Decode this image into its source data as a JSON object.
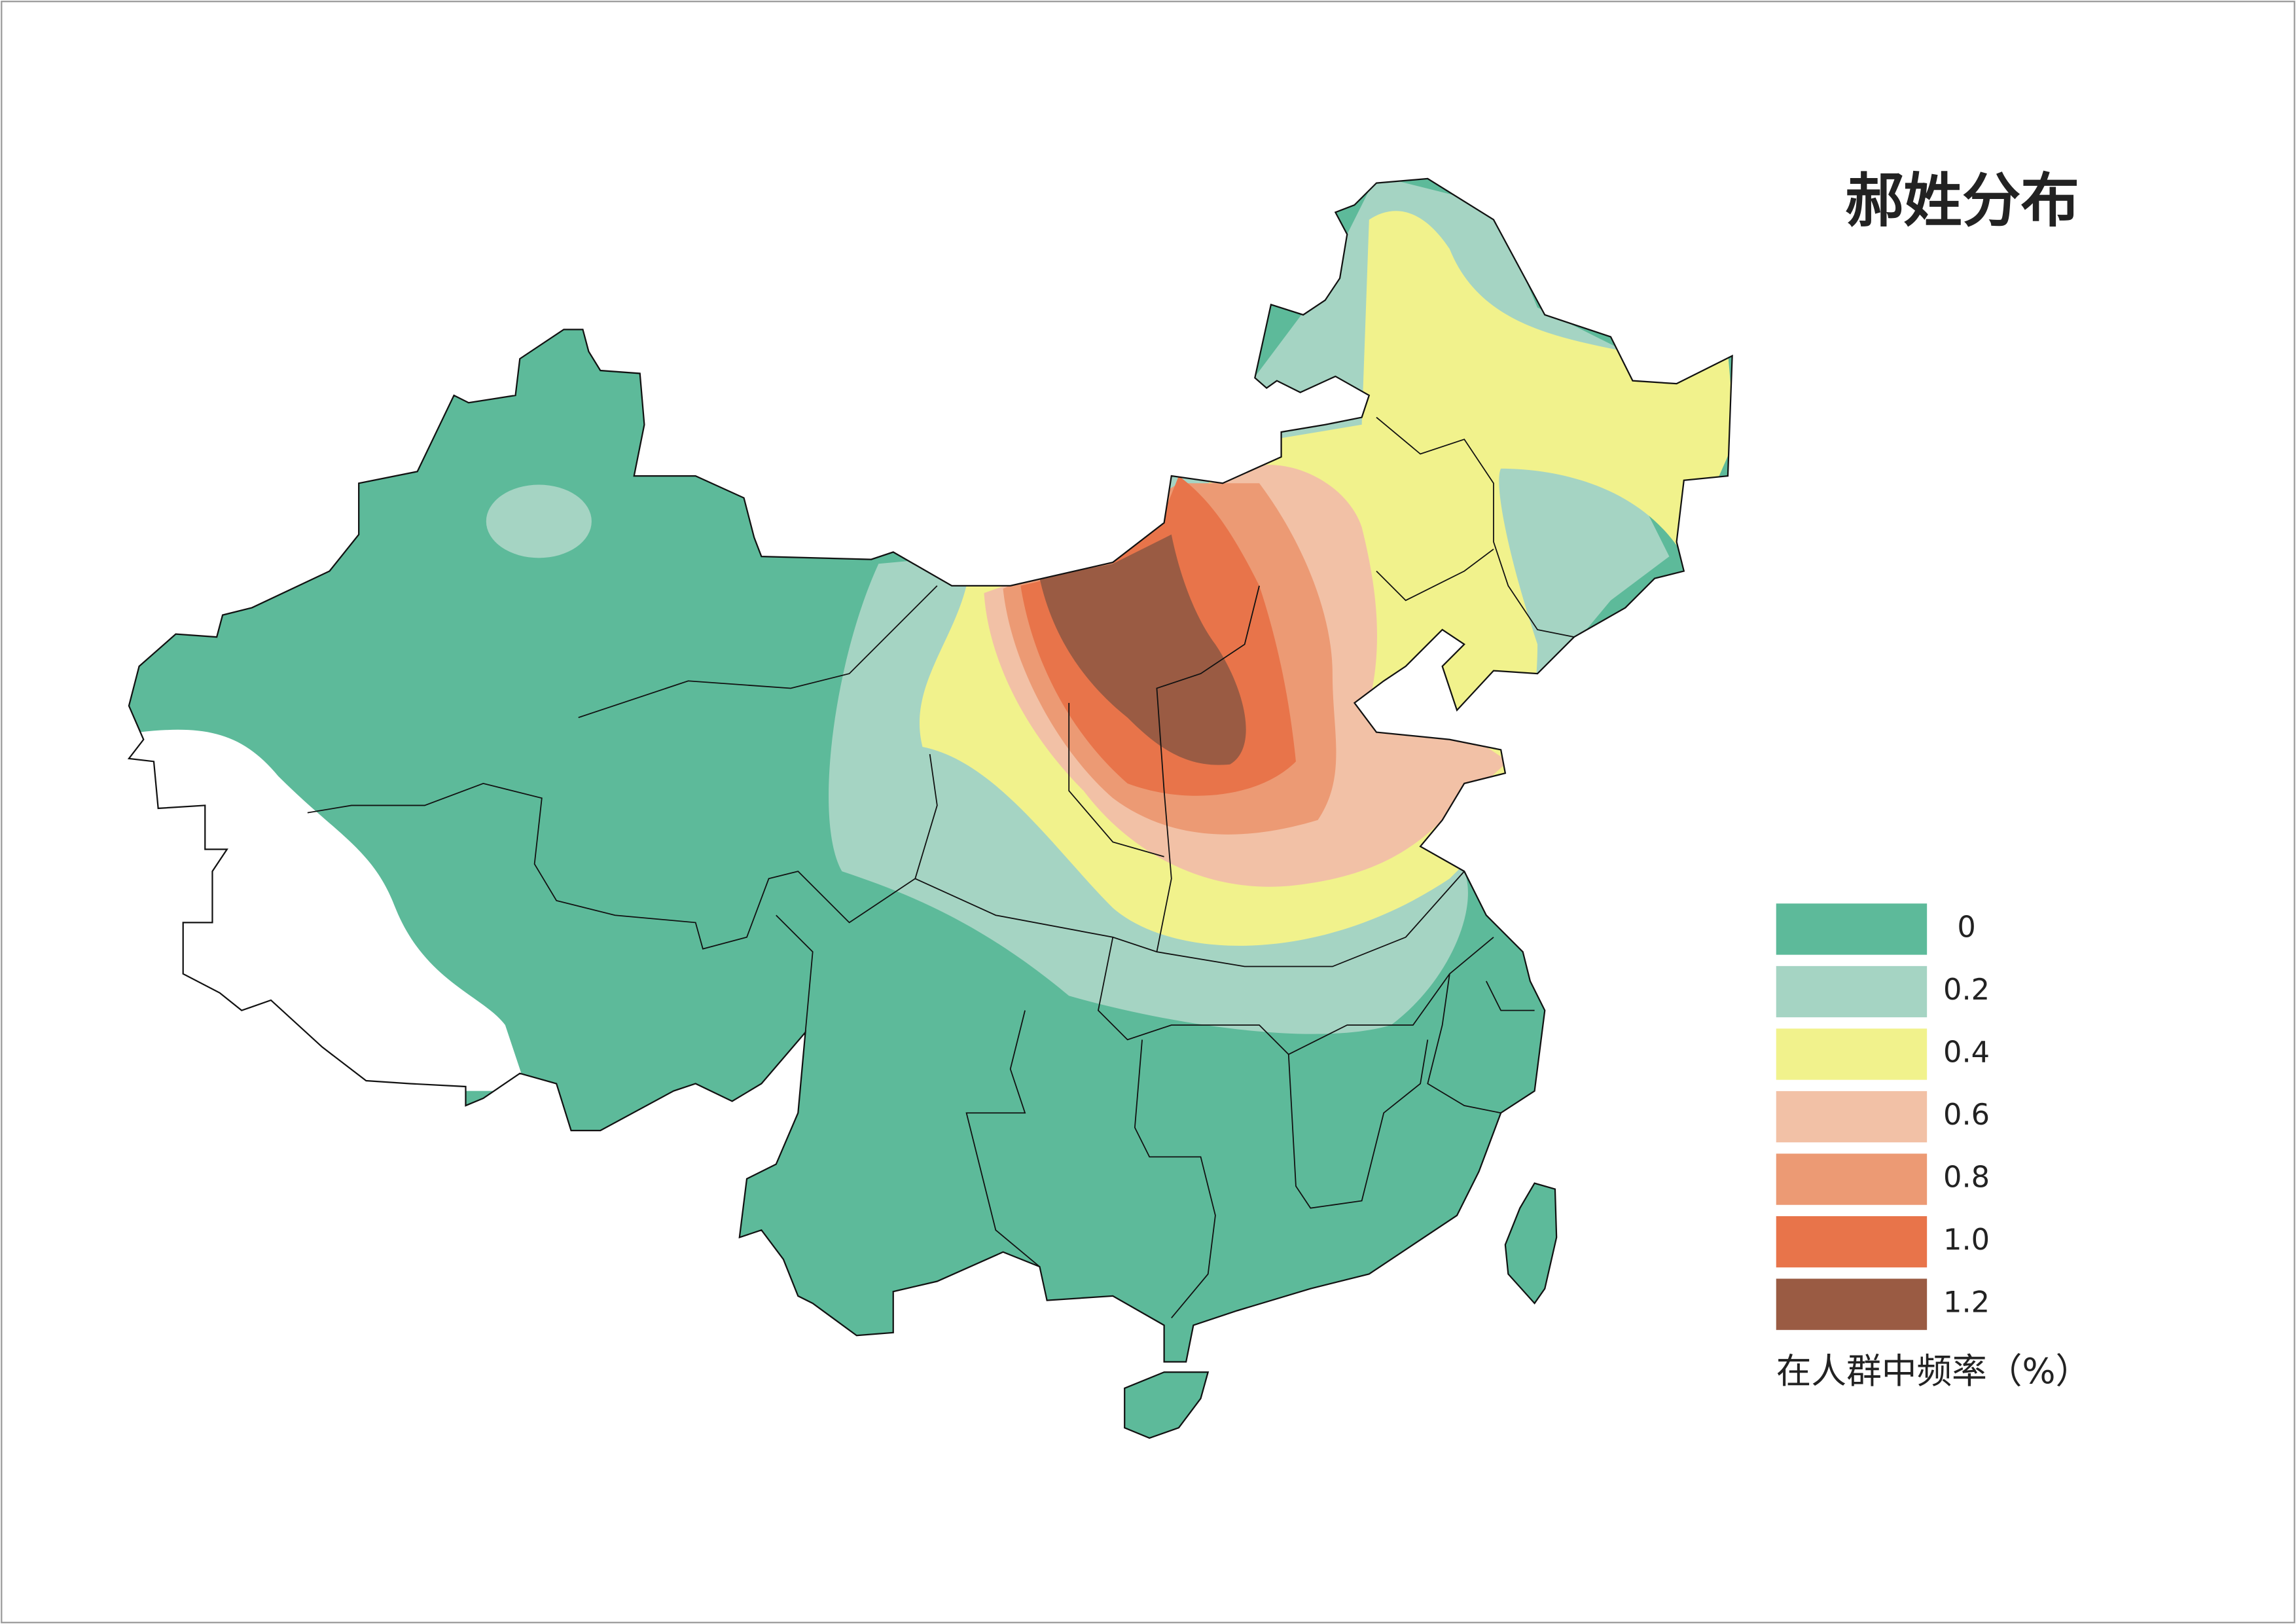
{
  "title": "郝姓分布",
  "legend": {
    "items": [
      {
        "label": "0",
        "color": "#5dba9a"
      },
      {
        "label": "0.2",
        "color": "#a5d4c3"
      },
      {
        "label": "0.4",
        "color": "#f1f28c"
      },
      {
        "label": "0.6",
        "color": "#f2c1a6"
      },
      {
        "label": "0.8",
        "color": "#ec9a74"
      },
      {
        "label": "1.0",
        "color": "#e8744a"
      },
      {
        "label": "1.2",
        "color": "#9a5b43"
      }
    ],
    "caption": "在人群中频率（%）"
  }
}
